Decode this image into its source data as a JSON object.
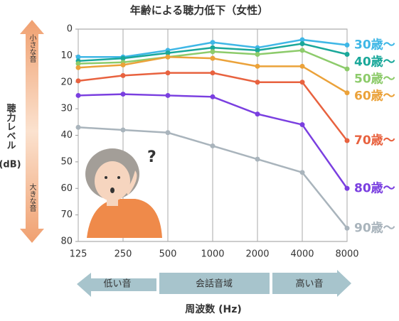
{
  "chart_data": {
    "type": "line",
    "title": "年齢による聴力低下（女性）",
    "ylabel": [
      "聴力レベル",
      "(dB)"
    ],
    "xlabel": "周波数 (Hz)",
    "categories": [
      "125",
      "250",
      "500",
      "1000",
      "2000",
      "4000",
      "8000"
    ],
    "ylim": [
      0,
      80
    ],
    "yticks": [
      0,
      10,
      20,
      30,
      40,
      50,
      60,
      70,
      80
    ],
    "y_reversed": true,
    "grid": true,
    "scale_labels": {
      "quiet": "小さな音",
      "loud": "大きな音"
    },
    "ranges": [
      "低い音",
      "会話音域",
      "高い音"
    ],
    "series": [
      {
        "name": "30歳～",
        "color": "#3fb7e6",
        "values": [
          10.5,
          10.5,
          8,
          5,
          7,
          4,
          6
        ]
      },
      {
        "name": "40歳～",
        "color": "#1aa89a",
        "values": [
          12,
          11,
          9,
          7,
          8,
          5.5,
          9.5
        ]
      },
      {
        "name": "50歳～",
        "color": "#8dcb6b",
        "values": [
          13,
          12.5,
          10.5,
          8.5,
          9.5,
          8,
          15
        ]
      },
      {
        "name": "60歳～",
        "color": "#eba23a",
        "values": [
          14.5,
          13.5,
          10.5,
          11,
          14,
          14,
          24
        ]
      },
      {
        "name": "70歳～",
        "color": "#e8623f",
        "values": [
          19.5,
          17.5,
          16.5,
          16.5,
          20,
          20,
          42
        ]
      },
      {
        "name": "80歳～",
        "color": "#7a3fe0",
        "values": [
          25,
          24.5,
          25,
          25.5,
          32,
          36,
          60
        ]
      },
      {
        "name": "90歳～",
        "color": "#a9b4bc",
        "values": [
          37,
          38,
          39,
          44,
          49,
          54,
          75
        ]
      }
    ]
  }
}
